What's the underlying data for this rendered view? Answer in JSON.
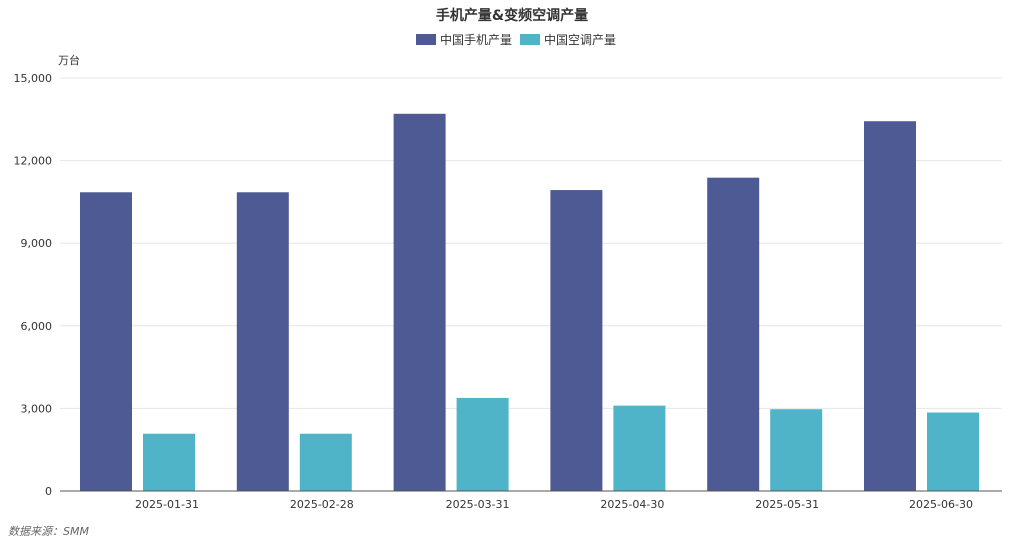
{
  "chart_data": {
    "type": "bar",
    "title": "手机产量&变频空调产量",
    "ylabel": "万台",
    "categories": [
      "2025-01-31",
      "2025-02-28",
      "2025-03-31",
      "2025-04-30",
      "2025-05-31",
      "2025-06-30"
    ],
    "series": [
      {
        "name": "中国手机产量",
        "color": "#4e5a93",
        "values": [
          10850,
          10850,
          13700,
          10930,
          11380,
          13430
        ]
      },
      {
        "name": "中国空调产量",
        "color": "#4fb4c8",
        "values": [
          2080,
          2080,
          3380,
          3100,
          2970,
          2850
        ]
      }
    ],
    "ylim": [
      0,
      15000
    ],
    "yticks": [
      "0",
      "3,000",
      "6,000",
      "9,000",
      "12,000",
      "15,000"
    ],
    "legend": "top-center",
    "grid": true
  },
  "footer": {
    "source": "数据来源：SMM"
  }
}
